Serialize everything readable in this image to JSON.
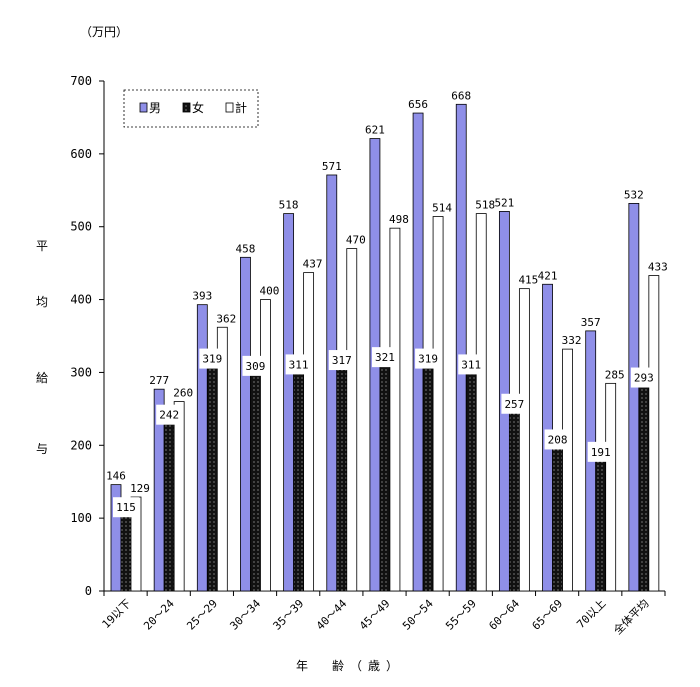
{
  "chart_data": {
    "type": "bar",
    "unit_label": "（万円）",
    "ylabel": "平均給与",
    "xlabel": "年　齢（歳）",
    "ylim": [
      0,
      700
    ],
    "yticks": [
      0,
      100,
      200,
      300,
      400,
      500,
      600,
      700
    ],
    "grid": false,
    "legend_position": "top-left",
    "categories": [
      "19以下",
      "20～24",
      "25～29",
      "30～34",
      "35～39",
      "40～44",
      "45～49",
      "50～54",
      "55～59",
      "60～64",
      "65～69",
      "70以上",
      "全体平均"
    ],
    "series": [
      {
        "name": "男",
        "color": "#8f8fe8",
        "values": [
          146,
          277,
          393,
          458,
          518,
          571,
          621,
          656,
          668,
          521,
          421,
          357,
          532
        ]
      },
      {
        "name": "女",
        "color": "#111111",
        "values": [
          115,
          242,
          319,
          309,
          311,
          317,
          321,
          319,
          311,
          257,
          208,
          191,
          293
        ]
      },
      {
        "name": "計",
        "color": "#ffffff",
        "values": [
          129,
          260,
          362,
          400,
          437,
          470,
          498,
          514,
          518,
          415,
          332,
          285,
          433
        ]
      }
    ]
  }
}
